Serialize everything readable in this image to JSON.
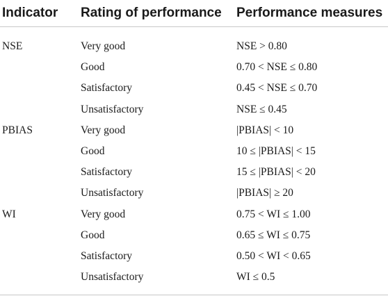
{
  "table": {
    "headers": [
      "Indicator",
      "Rating of performance",
      "Performance measures"
    ],
    "rows": [
      {
        "indicator": "NSE",
        "rating": "Very good",
        "measure": "NSE > 0.80"
      },
      {
        "indicator": "",
        "rating": "Good",
        "measure": "0.70 < NSE ≤ 0.80"
      },
      {
        "indicator": "",
        "rating": "Satisfactory",
        "measure": "0.45 < NSE ≤ 0.70"
      },
      {
        "indicator": "",
        "rating": "Unsatisfactory",
        "measure": "NSE ≤ 0.45"
      },
      {
        "indicator": "PBIAS",
        "rating": "Very good",
        "measure": "|PBIAS| < 10"
      },
      {
        "indicator": "",
        "rating": "Good",
        "measure": "10 ≤ |PBIAS| < 15"
      },
      {
        "indicator": "",
        "rating": "Satisfactory",
        "measure": "15 ≤ |PBIAS| < 20"
      },
      {
        "indicator": "",
        "rating": "Unsatisfactory",
        "measure": "|PBIAS| ≥ 20"
      },
      {
        "indicator": "WI",
        "rating": "Very good",
        "measure": "0.75 < WI ≤ 1.00"
      },
      {
        "indicator": "",
        "rating": "Good",
        "measure": "0.65 ≤ WI ≤ 0.75"
      },
      {
        "indicator": "",
        "rating": "Satisfactory",
        "measure": "0.50 < WI < 0.65"
      },
      {
        "indicator": "",
        "rating": "Unsatisfactory",
        "measure": "WI ≤ 0.5"
      }
    ]
  }
}
